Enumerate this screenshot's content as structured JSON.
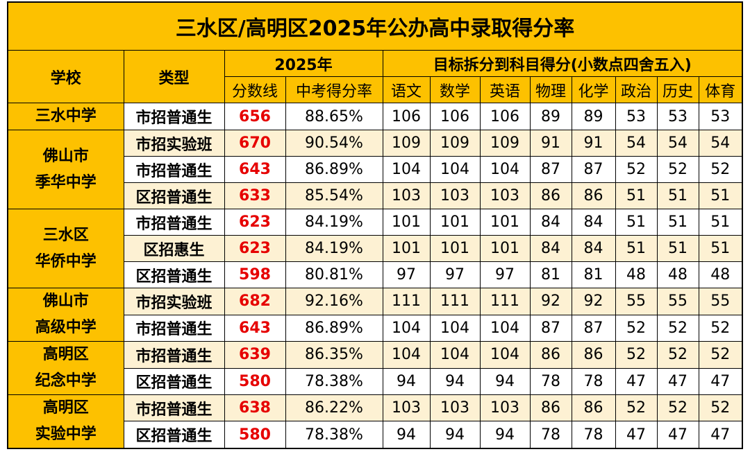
{
  "title": "三水区/高明区2025年公办高中录取得分率",
  "header": {
    "school": "学校",
    "type": "类型",
    "year": "2025年",
    "subjects_group": "目标拆分到科目得分(小数点四舍五入)",
    "columns": [
      "分数线",
      "中考得分率",
      "语文",
      "数学",
      "英语",
      "物理",
      "化学",
      "政治",
      "历史",
      "体育"
    ]
  },
  "schools": [
    {
      "name": [
        "三水中学"
      ],
      "rows": [
        {
          "type": "市招普通生",
          "cells": [
            656,
            "88.65%",
            106,
            106,
            106,
            89,
            89,
            53,
            53,
            53
          ]
        }
      ]
    },
    {
      "name": [
        "佛山市",
        "季华中学"
      ],
      "rows": [
        {
          "type": "市招实验班",
          "cells": [
            670,
            "90.54%",
            109,
            109,
            109,
            91,
            91,
            54,
            54,
            54
          ]
        },
        {
          "type": "市招普通生",
          "cells": [
            643,
            "86.89%",
            104,
            104,
            104,
            87,
            87,
            52,
            52,
            52
          ]
        },
        {
          "type": "区招普通生",
          "cells": [
            633,
            "85.54%",
            103,
            103,
            103,
            86,
            86,
            51,
            51,
            51
          ]
        }
      ]
    },
    {
      "name": [
        "三水区",
        "华侨中学"
      ],
      "rows": [
        {
          "type": "市招普通生",
          "cells": [
            623,
            "84.19%",
            101,
            101,
            101,
            84,
            84,
            51,
            51,
            51
          ]
        },
        {
          "type": "区招惠生",
          "cells": [
            623,
            "84.19%",
            101,
            101,
            101,
            84,
            84,
            51,
            51,
            51
          ]
        },
        {
          "type": "区招普通生",
          "cells": [
            598,
            "80.81%",
            97,
            97,
            97,
            81,
            81,
            48,
            48,
            48
          ]
        }
      ]
    },
    {
      "name": [
        "佛山市",
        "高级中学"
      ],
      "rows": [
        {
          "type": "市招实验班",
          "cells": [
            682,
            "92.16%",
            111,
            111,
            111,
            92,
            92,
            55,
            55,
            55
          ]
        },
        {
          "type": "市招普通生",
          "cells": [
            643,
            "86.89%",
            104,
            104,
            104,
            87,
            87,
            52,
            52,
            52
          ]
        }
      ]
    },
    {
      "name": [
        "高明区",
        "纪念中学"
      ],
      "rows": [
        {
          "type": "市招普通生",
          "cells": [
            639,
            "86.35%",
            104,
            104,
            104,
            86,
            86,
            52,
            52,
            52
          ]
        },
        {
          "type": "区招普通生",
          "cells": [
            580,
            "78.38%",
            94,
            94,
            94,
            78,
            78,
            47,
            47,
            47
          ]
        }
      ]
    },
    {
      "name": [
        "高明区",
        "实验中学"
      ],
      "rows": [
        {
          "type": "市招普通生",
          "cells": [
            638,
            "86.22%",
            103,
            103,
            103,
            86,
            86,
            52,
            52,
            52
          ]
        },
        {
          "type": "区招普通生",
          "cells": [
            580,
            "78.38%",
            94,
            94,
            94,
            78,
            78,
            47,
            47,
            47
          ]
        }
      ]
    }
  ]
}
